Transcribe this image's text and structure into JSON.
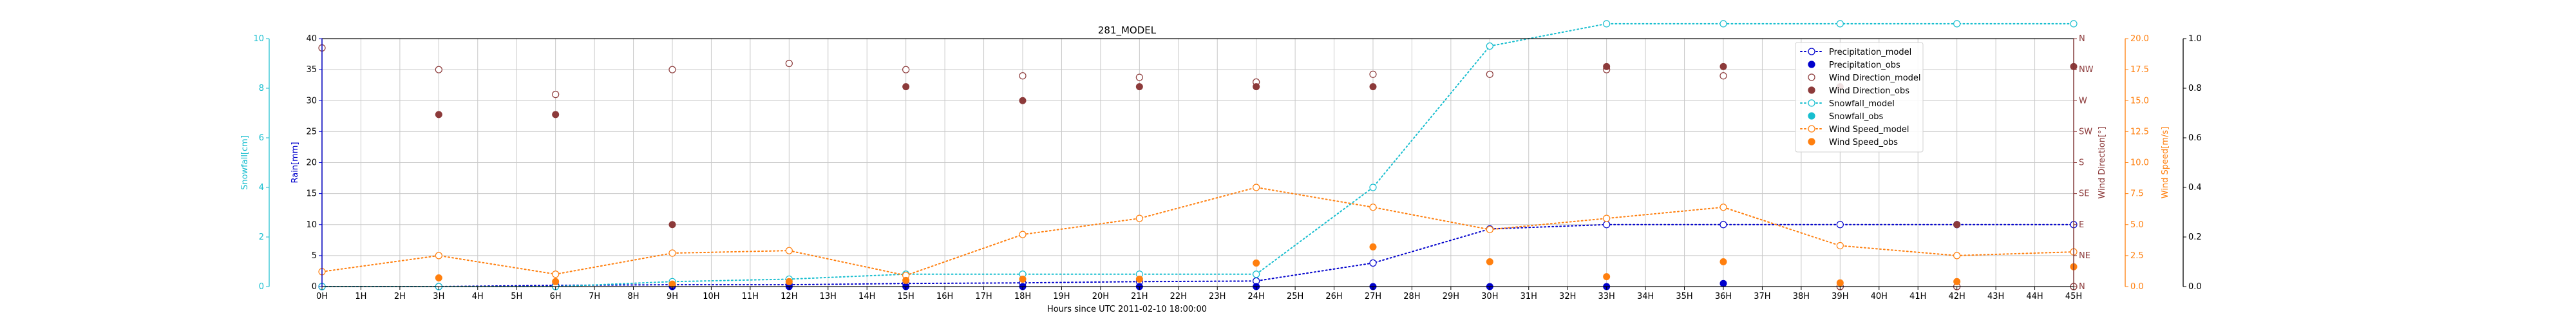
{
  "chart_data": {
    "type": "line",
    "title": "281_MODEL",
    "xlabel": "Hours since UTC 2011-02-10 18:00:00",
    "x_ticks": [
      "0H",
      "1H",
      "2H",
      "3H",
      "4H",
      "5H",
      "6H",
      "7H",
      "8H",
      "9H",
      "10H",
      "11H",
      "12H",
      "13H",
      "14H",
      "15H",
      "16H",
      "17H",
      "18H",
      "19H",
      "20H",
      "21H",
      "22H",
      "23H",
      "24H",
      "25H",
      "26H",
      "27H",
      "28H",
      "29H",
      "30H",
      "31H",
      "32H",
      "33H",
      "34H",
      "35H",
      "36H",
      "37H",
      "38H",
      "39H",
      "40H",
      "41H",
      "42H",
      "43H",
      "44H",
      "45H"
    ],
    "xlim": [
      0,
      45
    ],
    "grid": true,
    "legend_position": "top-right",
    "axes": {
      "rain": {
        "label": "Rain[mm]",
        "color": "#0000cc",
        "lim": [
          0,
          40
        ],
        "ticks": [
          "0",
          "5",
          "10",
          "15",
          "20",
          "25",
          "30",
          "35",
          "40"
        ]
      },
      "snowfall": {
        "label": "Snowfall[cm]",
        "color": "#17becf",
        "lim": [
          0,
          10
        ],
        "ticks": [
          "0",
          "2",
          "4",
          "6",
          "8",
          "10"
        ]
      },
      "wind_direction": {
        "label": "Wind Direction[°]",
        "color": "#8c3a3a",
        "lim": [
          0,
          8
        ],
        "ticks": [
          "N",
          "NE",
          "E",
          "SE",
          "S",
          "SW",
          "W",
          "NW",
          "N"
        ]
      },
      "wind_speed_left": {
        "label": "Wind Speed[m/s]",
        "color": "#ff7f0e",
        "lim": [
          0,
          20
        ],
        "ticks": [
          "0.0",
          "2.5",
          "5.0",
          "7.5",
          "10.0",
          "12.5",
          "15.0",
          "17.5",
          "20.0"
        ]
      },
      "wind_speed_right": {
        "label": "",
        "color": "#000000",
        "lim": [
          0,
          1
        ],
        "ticks": [
          "0.0",
          "0.2",
          "0.4",
          "0.6",
          "0.8",
          "1.0"
        ]
      }
    },
    "series": [
      {
        "name": "Precipitation_model",
        "axis": "rain",
        "color": "#0000cc",
        "style": "dotted-open",
        "points": [
          [
            0,
            0
          ],
          [
            3,
            0
          ],
          [
            6,
            0.2
          ],
          [
            9,
            0.3
          ],
          [
            12,
            0.3
          ],
          [
            15,
            0.5
          ],
          [
            18,
            0.6
          ],
          [
            21,
            0.8
          ],
          [
            24,
            0.9
          ],
          [
            27,
            3.8
          ],
          [
            30,
            9.3
          ],
          [
            33,
            10
          ],
          [
            36,
            10
          ],
          [
            39,
            10
          ],
          [
            42,
            10
          ],
          [
            45,
            10
          ]
        ]
      },
      {
        "name": "Precipitation_obs",
        "axis": "rain",
        "color": "#0000cc",
        "style": "marker-filled",
        "points": [
          [
            0,
            0
          ],
          [
            3,
            0
          ],
          [
            6,
            0
          ],
          [
            9,
            0
          ],
          [
            12,
            0
          ],
          [
            15,
            0
          ],
          [
            18,
            0
          ],
          [
            21,
            0
          ],
          [
            24,
            0
          ],
          [
            27,
            0
          ],
          [
            30,
            0
          ],
          [
            33,
            0
          ],
          [
            36,
            0.5
          ],
          [
            39,
            0
          ],
          [
            42,
            0
          ],
          [
            45,
            0
          ]
        ]
      },
      {
        "name": "Wind Direction_model",
        "axis": "wind_direction",
        "color": "#8c3a3a",
        "style": "marker-open",
        "points": [
          [
            0,
            7.7
          ],
          [
            3,
            7
          ],
          [
            6,
            6.2
          ],
          [
            9,
            7
          ],
          [
            12,
            7.2
          ],
          [
            15,
            7
          ],
          [
            18,
            6.8
          ],
          [
            21,
            6.75
          ],
          [
            24,
            6.6
          ],
          [
            27,
            6.85
          ],
          [
            30,
            6.85
          ],
          [
            33,
            7
          ],
          [
            36,
            6.8
          ],
          [
            39,
            0
          ],
          [
            42,
            0
          ],
          [
            45,
            0
          ]
        ]
      },
      {
        "name": "Wind Direction_obs",
        "axis": "wind_direction",
        "color": "#8c3a3a",
        "style": "marker-filled",
        "points": [
          [
            3,
            5.55
          ],
          [
            6,
            5.55
          ],
          [
            9,
            2
          ],
          [
            15,
            6.45
          ],
          [
            18,
            6
          ],
          [
            21,
            6.45
          ],
          [
            24,
            6.45
          ],
          [
            27,
            6.45
          ],
          [
            33,
            7.1
          ],
          [
            36,
            7.1
          ],
          [
            39,
            6.45
          ],
          [
            42,
            2
          ],
          [
            45,
            7.1
          ]
        ]
      },
      {
        "name": "Snowfall_model",
        "axis": "snowfall",
        "color": "#17becf",
        "style": "dotted-open",
        "points": [
          [
            0,
            0
          ],
          [
            3,
            0
          ],
          [
            6,
            0
          ],
          [
            9,
            0.2
          ],
          [
            12,
            0.3
          ],
          [
            15,
            0.5
          ],
          [
            18,
            0.5
          ],
          [
            21,
            0.5
          ],
          [
            24,
            0.5
          ],
          [
            27,
            4
          ],
          [
            30,
            9.7
          ],
          [
            33,
            10.6
          ],
          [
            36,
            10.6
          ],
          [
            39,
            10.6
          ],
          [
            42,
            10.6
          ],
          [
            45,
            10.6
          ]
        ]
      },
      {
        "name": "Snowfall_obs",
        "axis": "snowfall",
        "color": "#17becf",
        "style": "marker-filled",
        "points": []
      },
      {
        "name": "Wind Speed_model",
        "axis": "wind_speed_left",
        "color": "#ff7f0e",
        "style": "dotted-open",
        "points": [
          [
            0,
            1.2
          ],
          [
            3,
            2.5
          ],
          [
            6,
            1
          ],
          [
            9,
            2.7
          ],
          [
            12,
            2.9
          ],
          [
            15,
            0.9
          ],
          [
            18,
            4.2
          ],
          [
            21,
            5.5
          ],
          [
            24,
            8
          ],
          [
            27,
            6.4
          ],
          [
            30,
            4.6
          ],
          [
            33,
            5.5
          ],
          [
            36,
            6.4
          ],
          [
            39,
            3.3
          ],
          [
            42,
            2.5
          ],
          [
            45,
            2.8
          ]
        ]
      },
      {
        "name": "Wind Speed_obs",
        "axis": "wind_speed_left",
        "color": "#ff7f0e",
        "style": "marker-filled",
        "points": [
          [
            3,
            0.7
          ],
          [
            6,
            0.4
          ],
          [
            9,
            0.2
          ],
          [
            12,
            0.4
          ],
          [
            15,
            0.5
          ],
          [
            18,
            0.6
          ],
          [
            21,
            0.6
          ],
          [
            24,
            1.9
          ],
          [
            27,
            3.2
          ],
          [
            30,
            2.0
          ],
          [
            33,
            0.8
          ],
          [
            36,
            2
          ],
          [
            39,
            0.3
          ],
          [
            42,
            0.4
          ],
          [
            45,
            1.6
          ]
        ]
      }
    ]
  }
}
